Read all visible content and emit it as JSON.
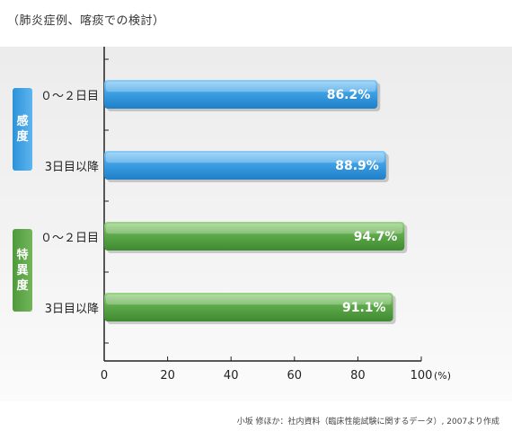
{
  "header": {
    "note": "（肺炎症例、喀痰での検討）"
  },
  "categories": [
    {
      "name": "sensitivity",
      "label_chars": [
        "感",
        "度"
      ]
    },
    {
      "name": "specificity",
      "label_chars": [
        "特",
        "異",
        "度"
      ]
    }
  ],
  "chart_data": {
    "type": "bar",
    "orientation": "horizontal",
    "title": "",
    "xlabel": "(%)",
    "ylabel": "",
    "xlim": [
      0,
      100
    ],
    "x_ticks": [
      "0",
      "20",
      "40",
      "60",
      "80",
      "100"
    ],
    "grid": false,
    "bars": [
      {
        "group": "感度",
        "label": "０～２日目",
        "value": 86.2,
        "value_label": "86.2%",
        "color": "#3d9fe4"
      },
      {
        "group": "感度",
        "label": "3日目以降",
        "value": 88.9,
        "value_label": "88.9%",
        "color": "#3d9fe4"
      },
      {
        "group": "特異度",
        "label": "０～２日目",
        "value": 94.7,
        "value_label": "94.7%",
        "color": "#5ea94a"
      },
      {
        "group": "特異度",
        "label": "3日目以降",
        "value": 91.1,
        "value_label": "91.1%",
        "color": "#5ea94a"
      }
    ]
  },
  "footnote": "小坂 修ほか：社内資料（臨床性能試験に関するデータ）, 2007より作成"
}
